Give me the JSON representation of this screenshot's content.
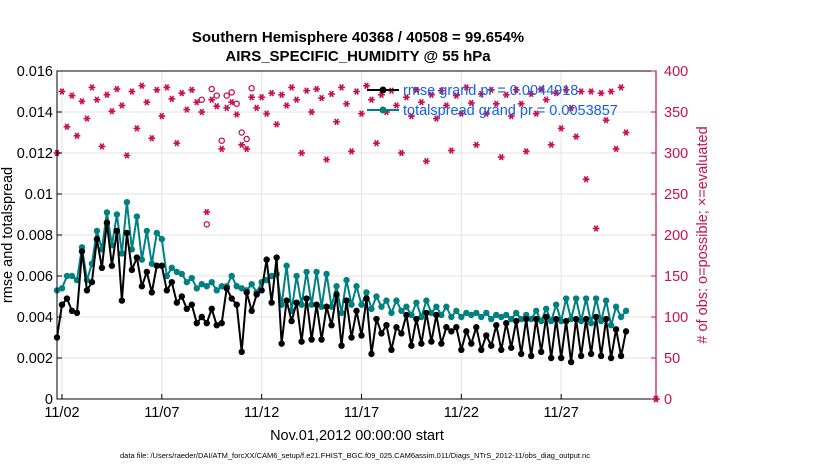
{
  "chart_data": {
    "type": "line",
    "title": "Southern Hemisphere 40368 / 40508 = 99.654%",
    "subtitle": "AIRS_SPECIFIC_HUMIDITY @ 55 hPa",
    "xlabel": "Nov.01,2012 00:00:00 start",
    "ylabel": "rmse and totalspread",
    "y2label": "# of obs: o=possible; ×=evaluated",
    "footer": "data file: /Users/raeder/DAI/ATM_forcXX/CAM6_setup/f.e21.FHIST_BGC.f09_025.CAM6assim.011/Diags_NTrS_2012-11/obs_diag_output.nc",
    "x_tick_labels": [
      "11/02",
      "11/07",
      "11/12",
      "11/17",
      "11/22",
      "11/27"
    ],
    "x_tick_days": [
      1,
      6,
      11,
      16,
      21,
      26
    ],
    "xlim": [
      0.75,
      30.75
    ],
    "ylim": [
      0,
      0.016
    ],
    "y_tick_labels": [
      "0",
      "0.002",
      "0.004",
      "0.006",
      "0.008",
      "0.01",
      "0.012",
      "0.014",
      "0.016"
    ],
    "y2lim": [
      0,
      400
    ],
    "y2_tick_labels": [
      "0",
      "50",
      "100",
      "150",
      "200",
      "250",
      "300",
      "350",
      "400"
    ],
    "grid": true,
    "legend_position": "top-right",
    "colors": {
      "rmse": "#000000",
      "totalspread": "#008080",
      "obs": "#c8104e",
      "legend_text": "#1560ea"
    },
    "series": [
      {
        "name": "rmse grand pr = 0.0044918",
        "values": [
          0.003,
          0.0046,
          0.0049,
          0.0043,
          0.0042,
          0.0072,
          0.0053,
          0.0057,
          0.0078,
          0.0064,
          0.0086,
          0.0065,
          0.0082,
          0.0048,
          0.0081,
          0.0063,
          0.0069,
          0.0055,
          0.0062,
          0.0052,
          0.0065,
          0.0065,
          0.0053,
          0.0057,
          0.0047,
          0.005,
          0.0044,
          0.0046,
          0.0037,
          0.004,
          0.0037,
          0.0044,
          0.0036,
          0.0037,
          0.0054,
          0.0049,
          0.0046,
          0.0023,
          0.0052,
          0.0043,
          0.0051,
          0.0053,
          0.0068,
          0.0047,
          0.0069,
          0.0027,
          0.0048,
          0.0038,
          0.0047,
          0.0028,
          0.0049,
          0.0029,
          0.0046,
          0.0029,
          0.0045,
          0.0036,
          0.0051,
          0.0026,
          0.0048,
          0.003,
          0.0043,
          0.0031,
          0.0049,
          0.0022,
          0.0039,
          0.0032,
          0.0036,
          0.0024,
          0.0035,
          0.0032,
          0.0041,
          0.0026,
          0.0039,
          0.0027,
          0.0042,
          0.0028,
          0.0041,
          0.0027,
          0.0035,
          0.0033,
          0.0035,
          0.0024,
          0.0033,
          0.0027,
          0.0035,
          0.0024,
          0.0031,
          0.0026,
          0.0036,
          0.0024,
          0.0037,
          0.0025,
          0.0038,
          0.0022,
          0.0039,
          0.0021,
          0.0039,
          0.0023,
          0.004,
          0.002,
          0.0039,
          0.002,
          0.0038,
          0.0018,
          0.0039,
          0.0021,
          0.0039,
          0.0022,
          0.004,
          0.0021,
          0.0039,
          0.002,
          0.0034,
          0.0021,
          0.0033
        ]
      },
      {
        "name": "totalspread grand pr = 0.0053857",
        "values": [
          0.0053,
          0.0054,
          0.006,
          0.006,
          0.0058,
          0.0074,
          0.0058,
          0.0066,
          0.0082,
          0.0073,
          0.0091,
          0.0075,
          0.009,
          0.0071,
          0.0096,
          0.0073,
          0.0089,
          0.0068,
          0.0082,
          0.0066,
          0.0081,
          0.0078,
          0.006,
          0.0064,
          0.0062,
          0.0061,
          0.0057,
          0.0059,
          0.0054,
          0.0056,
          0.0055,
          0.0057,
          0.0053,
          0.0055,
          0.0055,
          0.006,
          0.0055,
          0.0054,
          0.0053,
          0.0056,
          0.0052,
          0.0057,
          0.0058,
          0.006,
          0.0061,
          0.0046,
          0.0065,
          0.0043,
          0.006,
          0.0046,
          0.0062,
          0.0046,
          0.0062,
          0.0045,
          0.0061,
          0.0045,
          0.0055,
          0.0042,
          0.0058,
          0.0046,
          0.0055,
          0.0046,
          0.0052,
          0.0044,
          0.005,
          0.0045,
          0.0048,
          0.0042,
          0.0048,
          0.0043,
          0.0045,
          0.0041,
          0.0047,
          0.004,
          0.0048,
          0.0042,
          0.0045,
          0.0041,
          0.0045,
          0.004,
          0.0043,
          0.004,
          0.0042,
          0.0041,
          0.0042,
          0.004,
          0.0042,
          0.0039,
          0.0041,
          0.004,
          0.0041,
          0.0039,
          0.0042,
          0.0039,
          0.0041,
          0.0039,
          0.0043,
          0.0038,
          0.0044,
          0.0038,
          0.0046,
          0.0038,
          0.0049,
          0.0039,
          0.0049,
          0.0038,
          0.0049,
          0.0037,
          0.0049,
          0.0038,
          0.0048,
          0.0036,
          0.0045,
          0.004,
          0.0043
        ]
      },
      {
        "name": "obs_possible",
        "values": [
          300,
          375,
          332,
          370,
          321,
          363,
          342,
          380,
          365,
          308,
          371,
          351,
          378,
          358,
          297,
          375,
          330,
          382,
          362,
          318,
          377,
          345,
          380,
          366,
          312,
          373,
          353,
          377,
          362,
          365,
          213,
          378,
          370,
          315,
          370,
          374,
          360,
          325,
          317,
          379,
          355,
          368,
          348,
          373,
          335,
          371,
          358,
          380,
          365,
          300,
          376,
          350,
          378,
          367,
          292,
          372,
          338,
          380,
          360,
          302,
          375,
          348,
          382,
          365,
          312,
          371,
          350,
          376,
          358,
          300,
          368,
          345,
          377,
          362,
          290,
          371,
          342,
          376,
          358,
          303,
          370,
          348,
          380,
          361,
          310,
          372,
          348,
          377,
          360,
          295,
          371,
          345,
          377,
          360,
          302,
          372,
          348,
          378,
          365,
          310,
          373,
          330,
          377,
          355,
          320,
          375,
          268,
          375,
          208,
          373,
          340,
          375,
          305,
          380,
          325
        ]
      },
      {
        "name": "obs_evaluated",
        "values": [
          300,
          375,
          332,
          370,
          321,
          363,
          342,
          380,
          365,
          308,
          371,
          351,
          378,
          358,
          297,
          375,
          330,
          382,
          362,
          318,
          377,
          345,
          380,
          366,
          312,
          373,
          353,
          377,
          362,
          350,
          228,
          365,
          357,
          305,
          355,
          362,
          347,
          310,
          305,
          368,
          355,
          368,
          348,
          373,
          335,
          371,
          358,
          380,
          365,
          300,
          376,
          350,
          378,
          367,
          292,
          372,
          338,
          380,
          360,
          302,
          375,
          348,
          382,
          365,
          312,
          371,
          350,
          376,
          358,
          300,
          368,
          345,
          377,
          362,
          290,
          371,
          342,
          376,
          358,
          303,
          370,
          348,
          380,
          361,
          310,
          372,
          348,
          377,
          360,
          295,
          371,
          345,
          377,
          360,
          302,
          372,
          348,
          378,
          365,
          310,
          373,
          330,
          377,
          355,
          320,
          375,
          268,
          375,
          208,
          373,
          340,
          375,
          305,
          380,
          325
        ]
      }
    ],
    "last_point_marker": {
      "x": 30.75,
      "y2": 0
    }
  }
}
